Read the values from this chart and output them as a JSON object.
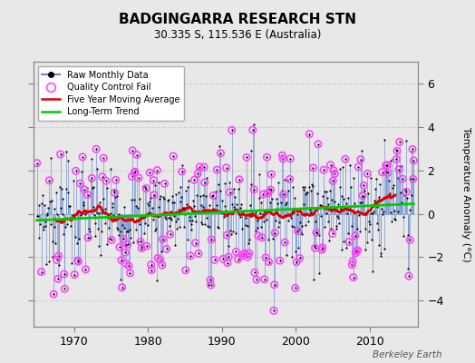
{
  "title": "BADGINGARRA RESEARCH STN",
  "subtitle": "30.335 S, 115.536 E (Australia)",
  "ylabel": "Temperature Anomaly (°C)",
  "credit": "Berkeley Earth",
  "ylim": [
    -5.2,
    7.0
  ],
  "yticks": [
    -4,
    -2,
    0,
    2,
    4,
    6
  ],
  "year_start": 1964.5,
  "year_end": 2016.5,
  "xticks": [
    1970,
    1980,
    1990,
    2000,
    2010
  ],
  "bg_color": "#e8e8e8",
  "plot_bg_color": "#e8e8e8",
  "raw_line_color": "#6688cc",
  "raw_dot_color": "#000000",
  "moving_avg_color": "#dd0000",
  "trend_color": "#00cc00",
  "qc_fail_color": "#ff44ff",
  "grid_color": "#cccccc",
  "legend_bg": "#ffffff"
}
